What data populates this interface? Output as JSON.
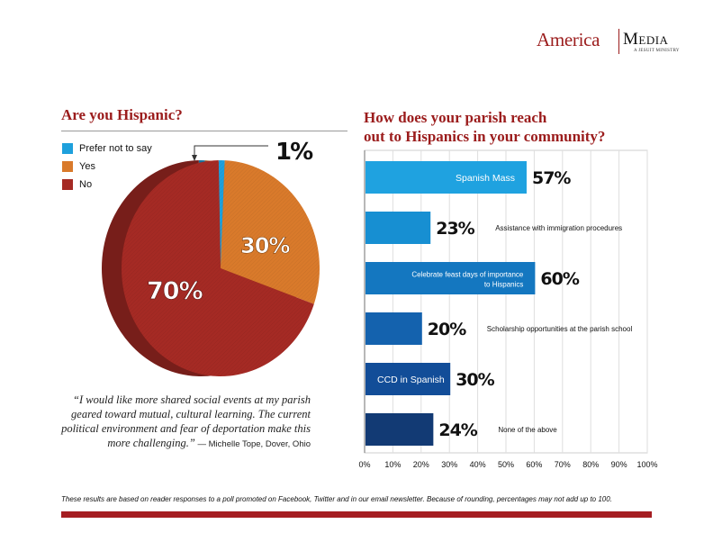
{
  "logo": {
    "america": "America",
    "media": "Media",
    "subtitle": "A JESUIT MINISTRY"
  },
  "left_title": "Are you Hispanic?",
  "right_title_line1": "How does your parish reach",
  "right_title_line2": "out to Hispanics in your community?",
  "quote": {
    "text": "“I would like more shared social events at my parish geared toward mutual, cultural learning. The current political environment and fear of deportation make this more challenging.”",
    "attribution": " — Michelle Tope, Dover, Ohio"
  },
  "footnote": "These results are based on reader responses to a poll promoted on Facebook, Twitter and in our email newsletter. Because of rounding, percentages may not add up to 100.",
  "chart_data": [
    {
      "type": "pie",
      "title": "Are you Hispanic?",
      "categories": [
        "Prefer not to say",
        "Yes",
        "No"
      ],
      "values": [
        1,
        30,
        70
      ],
      "labels": [
        "1%",
        "30%",
        "70%"
      ],
      "colors": [
        "#1ea0dc",
        "#d97a2b",
        "#a52a24"
      ],
      "legend": "top-left"
    },
    {
      "type": "bar",
      "orientation": "horizontal",
      "title": "How does your parish reach out to Hispanics in your community?",
      "categories": [
        "Spanish Mass",
        "Assistance with immigration procedures",
        "Celebrate feast days of importance to Hispanics",
        "Scholarship opportunities at the parish school",
        "CCD in Spanish",
        "None of the above"
      ],
      "category_lines": [
        [
          "Spanish Mass"
        ],
        [
          "Assistance with immigration procedures"
        ],
        [
          "Celebrate feast days of importance",
          "to Hispanics"
        ],
        [
          "Scholarship opportunities at the parish school"
        ],
        [
          "CCD in Spanish"
        ],
        [
          "None of the above"
        ]
      ],
      "label_inside": [
        true,
        false,
        true,
        false,
        true,
        false
      ],
      "values": [
        57,
        23,
        60,
        20,
        30,
        24
      ],
      "value_labels": [
        "57%",
        "23%",
        "60%",
        "20%",
        "30%",
        "24%"
      ],
      "colors": [
        "#1fa2e0",
        "#178fd2",
        "#1477c0",
        "#1462ae",
        "#124d98",
        "#123a74"
      ],
      "xlim": [
        0,
        100
      ],
      "xticks": [
        "0%",
        "10%",
        "20%",
        "30%",
        "40%",
        "50%",
        "60%",
        "70%",
        "80%",
        "90%",
        "100%"
      ],
      "grid": true
    }
  ]
}
